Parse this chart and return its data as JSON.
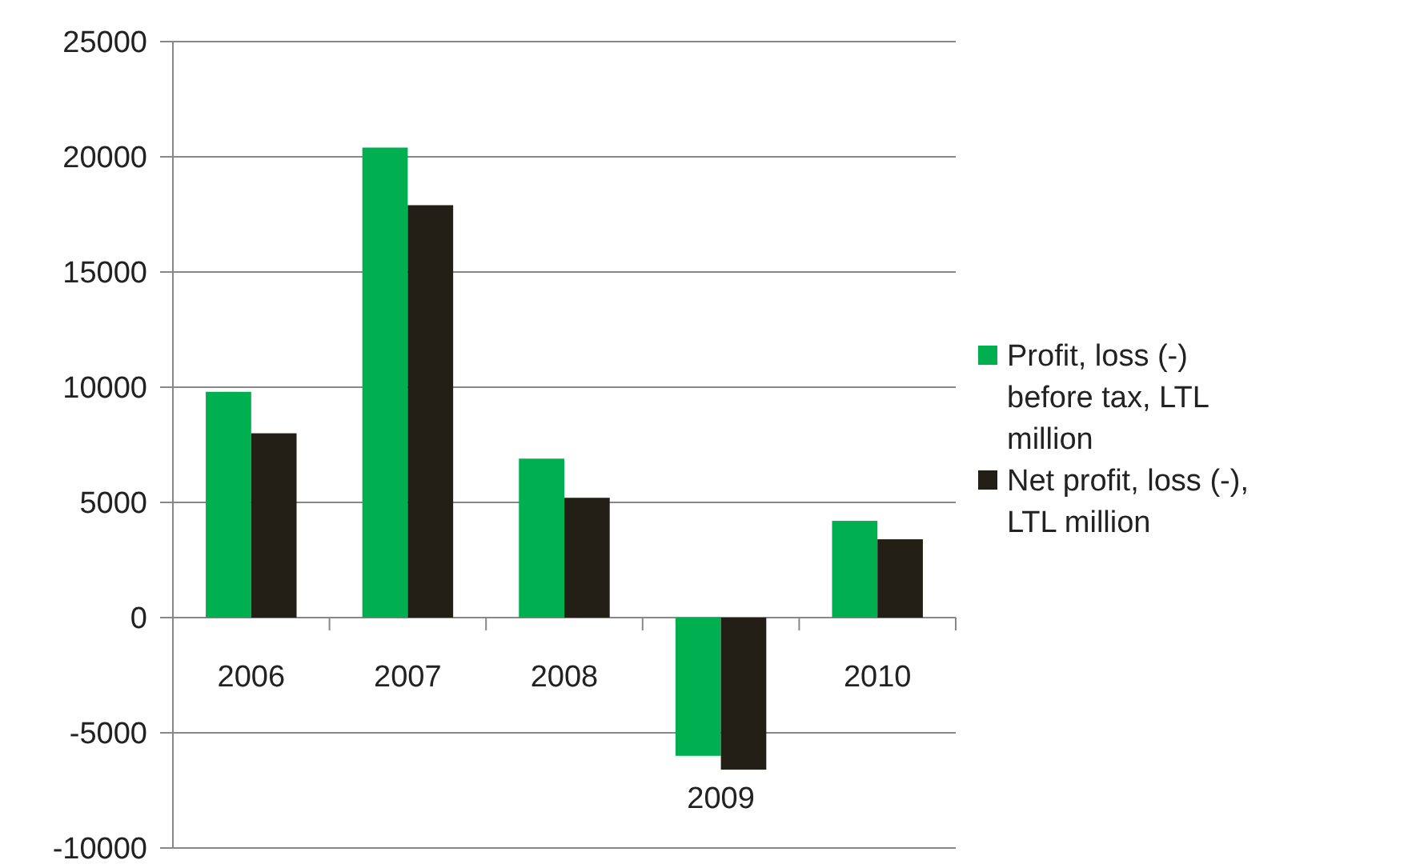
{
  "chart_data": {
    "type": "bar",
    "categories": [
      "2006",
      "2007",
      "2008",
      "2009",
      "2010"
    ],
    "series": [
      {
        "name": "Profit, loss (-) before tax, LTL million",
        "color": "#00b050",
        "values": [
          9800,
          20400,
          6900,
          -6000,
          4200
        ]
      },
      {
        "name": "Net profit, loss (-), LTL million",
        "color": "#231f16",
        "values": [
          8000,
          17900,
          5200,
          -6600,
          3400
        ]
      }
    ],
    "ylim": [
      -10000,
      25000
    ],
    "yticks": [
      -10000,
      -5000,
      0,
      5000,
      10000,
      15000,
      20000,
      25000
    ],
    "grid": "y",
    "legend": "right"
  }
}
